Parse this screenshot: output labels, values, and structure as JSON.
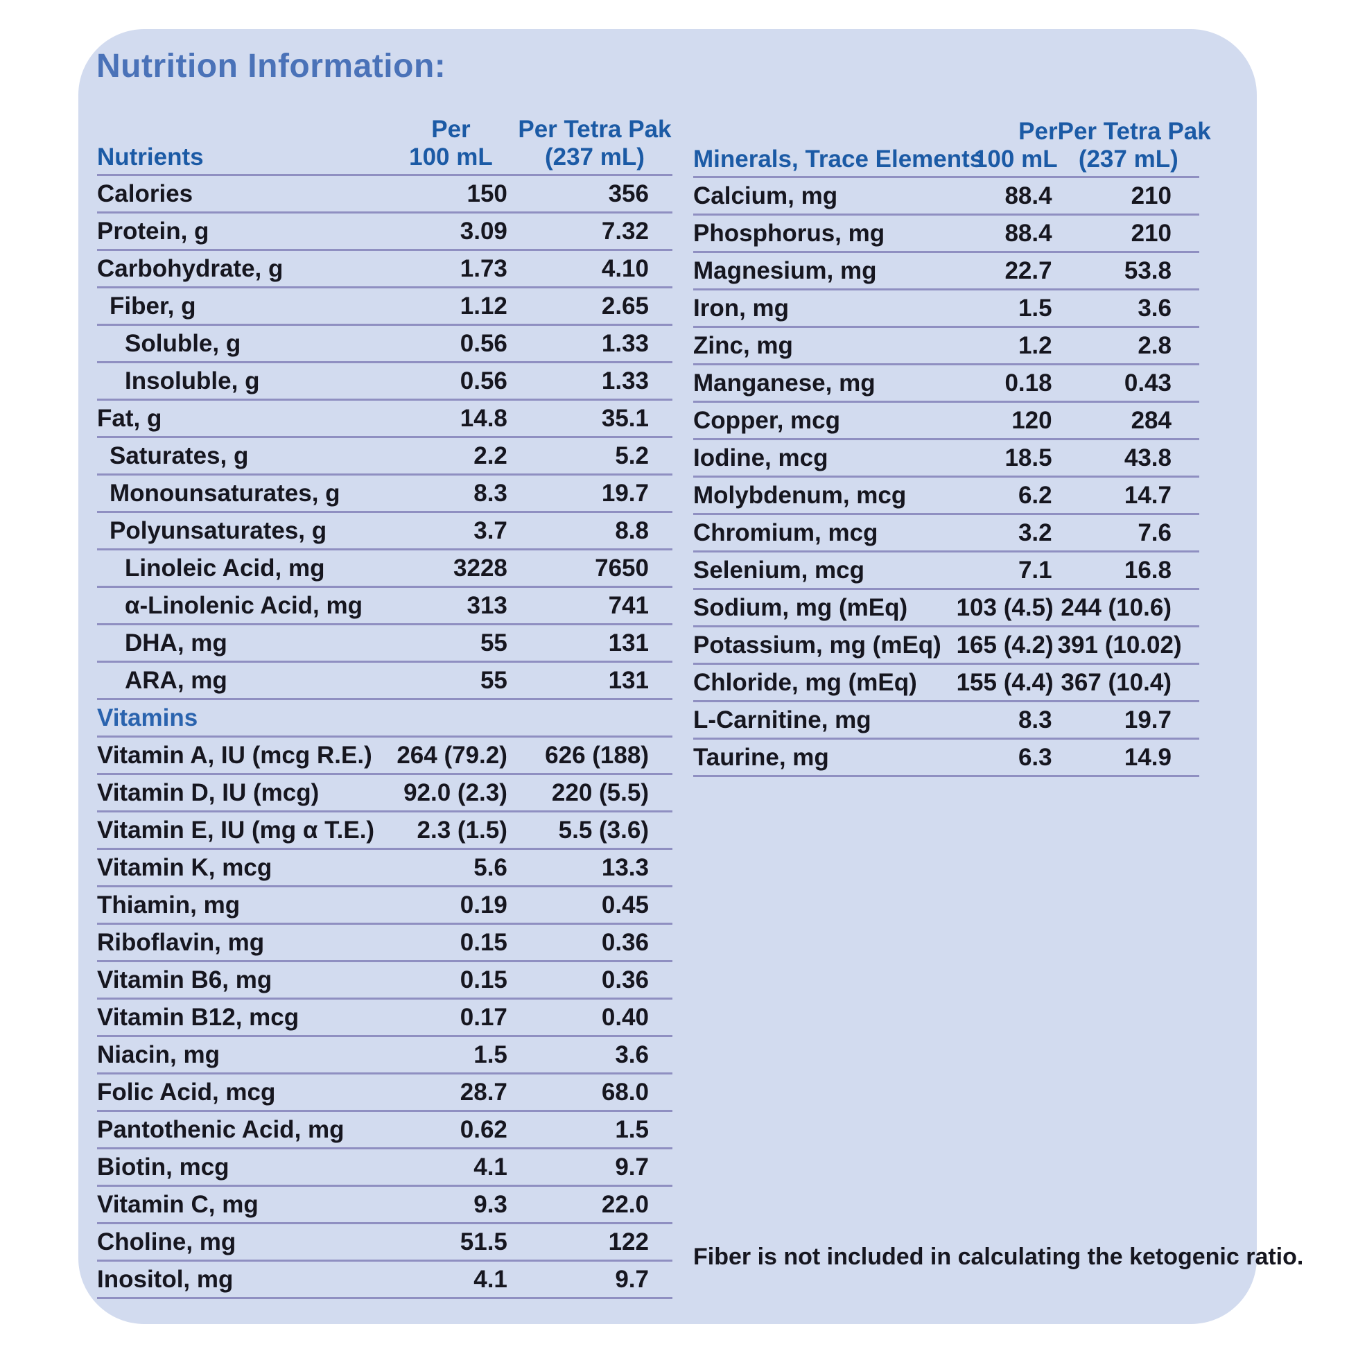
{
  "panel": {
    "title": "Nutrition Information:",
    "footnote": "Fiber is not included in calculating the ketogenic ratio."
  },
  "colors": {
    "card_background": "#d2dbef",
    "divider": "#8f8fc1",
    "header_blue": "#1b5aa5",
    "title_blue": "#4a72b8",
    "body_text": "#16161f"
  },
  "tables": [
    {
      "name": "nutrients",
      "header": {
        "label": "Nutrients",
        "per_line1": "Per",
        "per_line2": "100 mL",
        "pak_line1": "Per Tetra Pak",
        "pak_line2": "(237 mL)"
      },
      "rows": [
        {
          "label": "Calories",
          "per_100ml": "150",
          "per_tetra_pak": "356",
          "indent": 0
        },
        {
          "label": "Protein, g",
          "per_100ml": "3.09",
          "per_tetra_pak": "7.32",
          "indent": 0
        },
        {
          "label": "Carbohydrate, g",
          "per_100ml": "1.73",
          "per_tetra_pak": "4.10",
          "indent": 0
        },
        {
          "label": "Fiber, g",
          "per_100ml": "1.12",
          "per_tetra_pak": "2.65",
          "indent": 1
        },
        {
          "label": "Soluble, g",
          "per_100ml": "0.56",
          "per_tetra_pak": "1.33",
          "indent": 2
        },
        {
          "label": "Insoluble, g",
          "per_100ml": "0.56",
          "per_tetra_pak": "1.33",
          "indent": 2
        },
        {
          "label": "Fat, g",
          "per_100ml": "14.8",
          "per_tetra_pak": "35.1",
          "indent": 0
        },
        {
          "label": "Saturates, g",
          "per_100ml": "2.2",
          "per_tetra_pak": "5.2",
          "indent": 1
        },
        {
          "label": "Monounsaturates, g",
          "per_100ml": "8.3",
          "per_tetra_pak": "19.7",
          "indent": 1
        },
        {
          "label": "Polyunsaturates, g",
          "per_100ml": "3.7",
          "per_tetra_pak": "8.8",
          "indent": 1
        },
        {
          "label": "Linoleic Acid, mg",
          "per_100ml": "3228",
          "per_tetra_pak": "7650",
          "indent": 2
        },
        {
          "label": "α-Linolenic Acid, mg",
          "per_100ml": "313",
          "per_tetra_pak": "741",
          "indent": 2
        },
        {
          "label": "DHA, mg",
          "per_100ml": "55",
          "per_tetra_pak": "131",
          "indent": 2
        },
        {
          "label": "ARA, mg",
          "per_100ml": "55",
          "per_tetra_pak": "131",
          "indent": 2
        },
        {
          "label": "Vitamins",
          "per_100ml": "",
          "per_tetra_pak": "",
          "indent": 0,
          "section": true
        },
        {
          "label": "Vitamin A, IU (mcg R.E.)",
          "per_100ml": "264 (79.2)",
          "per_tetra_pak": "626 (188)",
          "indent": 0
        },
        {
          "label": "Vitamin D, IU (mcg)",
          "per_100ml": "92.0 (2.3)",
          "per_tetra_pak": "220 (5.5)",
          "indent": 0
        },
        {
          "label": "Vitamin E, IU (mg α T.E.)",
          "per_100ml": "2.3 (1.5)",
          "per_tetra_pak": "5.5 (3.6)",
          "indent": 0
        },
        {
          "label": "Vitamin K, mcg",
          "per_100ml": "5.6",
          "per_tetra_pak": "13.3",
          "indent": 0
        },
        {
          "label": "Thiamin, mg",
          "per_100ml": "0.19",
          "per_tetra_pak": "0.45",
          "indent": 0
        },
        {
          "label": "Riboflavin, mg",
          "per_100ml": "0.15",
          "per_tetra_pak": "0.36",
          "indent": 0
        },
        {
          "label": "Vitamin B6, mg",
          "per_100ml": "0.15",
          "per_tetra_pak": "0.36",
          "indent": 0
        },
        {
          "label": "Vitamin B12, mcg",
          "per_100ml": "0.17",
          "per_tetra_pak": "0.40",
          "indent": 0
        },
        {
          "label": "Niacin, mg",
          "per_100ml": "1.5",
          "per_tetra_pak": "3.6",
          "indent": 0
        },
        {
          "label": "Folic Acid, mcg",
          "per_100ml": "28.7",
          "per_tetra_pak": "68.0",
          "indent": 0
        },
        {
          "label": "Pantothenic Acid, mg",
          "per_100ml": "0.62",
          "per_tetra_pak": "1.5",
          "indent": 0
        },
        {
          "label": "Biotin, mcg",
          "per_100ml": "4.1",
          "per_tetra_pak": "9.7",
          "indent": 0
        },
        {
          "label": "Vitamin C, mg",
          "per_100ml": "9.3",
          "per_tetra_pak": "22.0",
          "indent": 0
        },
        {
          "label": "Choline, mg",
          "per_100ml": "51.5",
          "per_tetra_pak": "122",
          "indent": 0
        },
        {
          "label": "Inositol, mg",
          "per_100ml": "4.1",
          "per_tetra_pak": "9.7",
          "indent": 0
        }
      ]
    },
    {
      "name": "minerals-trace-elements",
      "header": {
        "label": "Minerals, Trace Elements",
        "per_line1": "Per",
        "per_line2": "100 mL",
        "pak_line1": "Per Tetra Pak",
        "pak_line2": "(237 mL)"
      },
      "rows": [
        {
          "label": "Calcium, mg",
          "per_100ml": "88.4",
          "per_tetra_pak": "210",
          "indent": 0
        },
        {
          "label": "Phosphorus, mg",
          "per_100ml": "88.4",
          "per_tetra_pak": "210",
          "indent": 0
        },
        {
          "label": "Magnesium, mg",
          "per_100ml": "22.7",
          "per_tetra_pak": "53.8",
          "indent": 0
        },
        {
          "label": "Iron, mg",
          "per_100ml": "1.5",
          "per_tetra_pak": "3.6",
          "indent": 0
        },
        {
          "label": "Zinc, mg",
          "per_100ml": "1.2",
          "per_tetra_pak": "2.8",
          "indent": 0
        },
        {
          "label": "Manganese, mg",
          "per_100ml": "0.18",
          "per_tetra_pak": "0.43",
          "indent": 0
        },
        {
          "label": "Copper, mcg",
          "per_100ml": "120",
          "per_tetra_pak": "284",
          "indent": 0
        },
        {
          "label": "Iodine, mcg",
          "per_100ml": "18.5",
          "per_tetra_pak": "43.8",
          "indent": 0
        },
        {
          "label": "Molybdenum, mcg",
          "per_100ml": "6.2",
          "per_tetra_pak": "14.7",
          "indent": 0
        },
        {
          "label": "Chromium, mcg",
          "per_100ml": "3.2",
          "per_tetra_pak": "7.6",
          "indent": 0
        },
        {
          "label": "Selenium, mcg",
          "per_100ml": "7.1",
          "per_tetra_pak": "16.8",
          "indent": 0
        },
        {
          "label": "Sodium, mg (mEq)",
          "per_100ml": "103 (4.5)",
          "per_tetra_pak": "244 (10.6)",
          "indent": 0
        },
        {
          "label": "Potassium, mg (mEq)",
          "per_100ml": "165 (4.2)",
          "per_tetra_pak": "391 (10.02)",
          "indent": 0
        },
        {
          "label": "Chloride, mg (mEq)",
          "per_100ml": "155 (4.4)",
          "per_tetra_pak": "367 (10.4)",
          "indent": 0
        },
        {
          "label": "L-Carnitine, mg",
          "per_100ml": "8.3",
          "per_tetra_pak": "19.7",
          "indent": 0
        },
        {
          "label": "Taurine, mg",
          "per_100ml": "6.3",
          "per_tetra_pak": "14.9",
          "indent": 0
        }
      ]
    }
  ]
}
